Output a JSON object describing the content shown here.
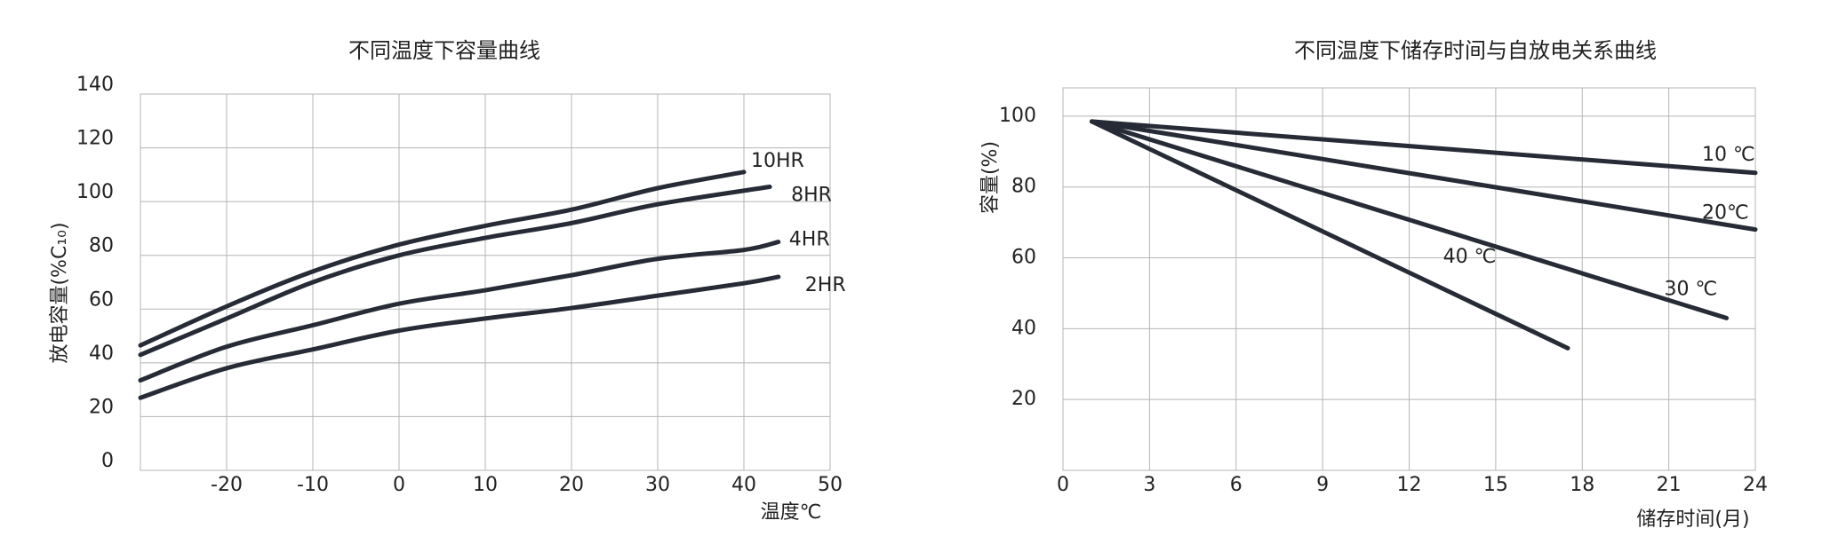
{
  "chart_data": [
    {
      "type": "line",
      "title": "不同温度下容量曲线",
      "x_label": "温度℃",
      "y_label": "放电容量(%C₁₀)",
      "xlim": [
        -30,
        50
      ],
      "xticks": [
        -20,
        -10,
        0,
        10,
        20,
        30,
        40,
        50
      ],
      "ylim": [
        0,
        140
      ],
      "yticks": [
        0,
        20,
        40,
        60,
        80,
        100,
        120,
        140
      ],
      "grid": true,
      "series": [
        {
          "name": "10HR",
          "color": "#262b36",
          "x": [
            -30,
            -20,
            -10,
            0,
            10,
            20,
            30,
            40
          ],
          "values": [
            46.5,
            61,
            74,
            84,
            91,
            97,
            105,
            111
          ]
        },
        {
          "name": "8HR",
          "color": "#262b36",
          "x": [
            -30,
            -20,
            -10,
            0,
            10,
            20,
            30,
            43
          ],
          "values": [
            43,
            56.5,
            70,
            80,
            86.5,
            92,
            99,
            105.5
          ]
        },
        {
          "name": "4HR",
          "color": "#262b36",
          "x": [
            -30,
            -20,
            -10,
            0,
            10,
            20,
            30,
            40,
            44
          ],
          "values": [
            33.5,
            46,
            54,
            62,
            67,
            72.6,
            78.7,
            82,
            85
          ]
        },
        {
          "name": "2HR",
          "color": "#262b36",
          "x": [
            -30,
            -20,
            -10,
            0,
            10,
            20,
            30,
            40,
            44
          ],
          "values": [
            27,
            38,
            45,
            52,
            56.5,
            60.4,
            65,
            69.6,
            72
          ]
        }
      ]
    },
    {
      "type": "line",
      "title": "不同温度下储存时间与自放电关系曲线",
      "x_label": "储存时间(月)",
      "y_label": "容量(%)",
      "xlim": [
        0,
        24
      ],
      "xticks": [
        0,
        3,
        6,
        9,
        12,
        15,
        18,
        21,
        24
      ],
      "ylim": [
        0,
        108
      ],
      "yticks": [
        20,
        40,
        60,
        80,
        100
      ],
      "grid": true,
      "series": [
        {
          "name": "10 ℃",
          "color": "#262b36",
          "x": [
            1,
            24
          ],
          "values": [
            98.5,
            84
          ]
        },
        {
          "name": "20℃",
          "color": "#262b36",
          "x": [
            1,
            24
          ],
          "values": [
            98.5,
            68
          ]
        },
        {
          "name": "30 ℃",
          "color": "#262b36",
          "x": [
            1,
            23
          ],
          "values": [
            98.5,
            43
          ]
        },
        {
          "name": "40 ℃",
          "color": "#262b36",
          "x": [
            1,
            17.5
          ],
          "values": [
            98.5,
            34.5
          ]
        }
      ]
    }
  ]
}
